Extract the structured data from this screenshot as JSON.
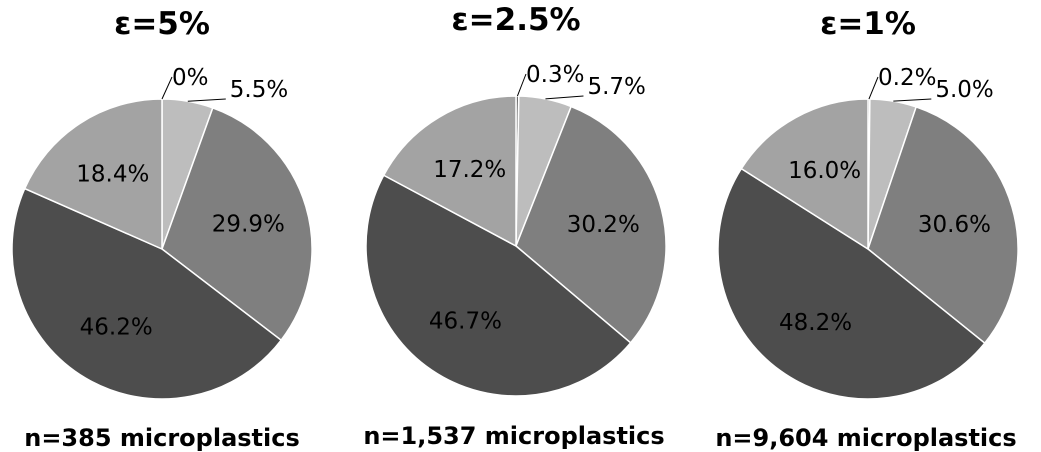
{
  "chart_data": [
    {
      "type": "pie",
      "title": "ε=5%",
      "footer": "n=385 microplastics",
      "labels": [
        "0%",
        "5.5%",
        "29.9%",
        "46.2%",
        "18.4%"
      ],
      "values": [
        0,
        5.5,
        29.9,
        46.2,
        18.4
      ],
      "colors": [
        "#6f6f6f",
        "#bdbdbd",
        "#7f7f7f",
        "#4d4d4d",
        "#a3a3a3"
      ]
    },
    {
      "type": "pie",
      "title": "ε=2.5%",
      "footer": "n=1,537 microplastics",
      "labels": [
        "0.3%",
        "5.7%",
        "30.2%",
        "46.7%",
        "17.2%"
      ],
      "values": [
        0.3,
        5.7,
        30.2,
        46.7,
        17.2
      ],
      "colors": [
        "#6f6f6f",
        "#bdbdbd",
        "#7f7f7f",
        "#4d4d4d",
        "#a3a3a3"
      ]
    },
    {
      "type": "pie",
      "title": "ε=1%",
      "footer": "n=9,604 microplastics",
      "labels": [
        "0.2%",
        "5.0%",
        "30.6%",
        "48.2%",
        "16.0%"
      ],
      "values": [
        0.2,
        5.0,
        30.6,
        48.2,
        16.0
      ],
      "colors": [
        "#6f6f6f",
        "#bdbdbd",
        "#7f7f7f",
        "#4d4d4d",
        "#a3a3a3"
      ]
    }
  ]
}
